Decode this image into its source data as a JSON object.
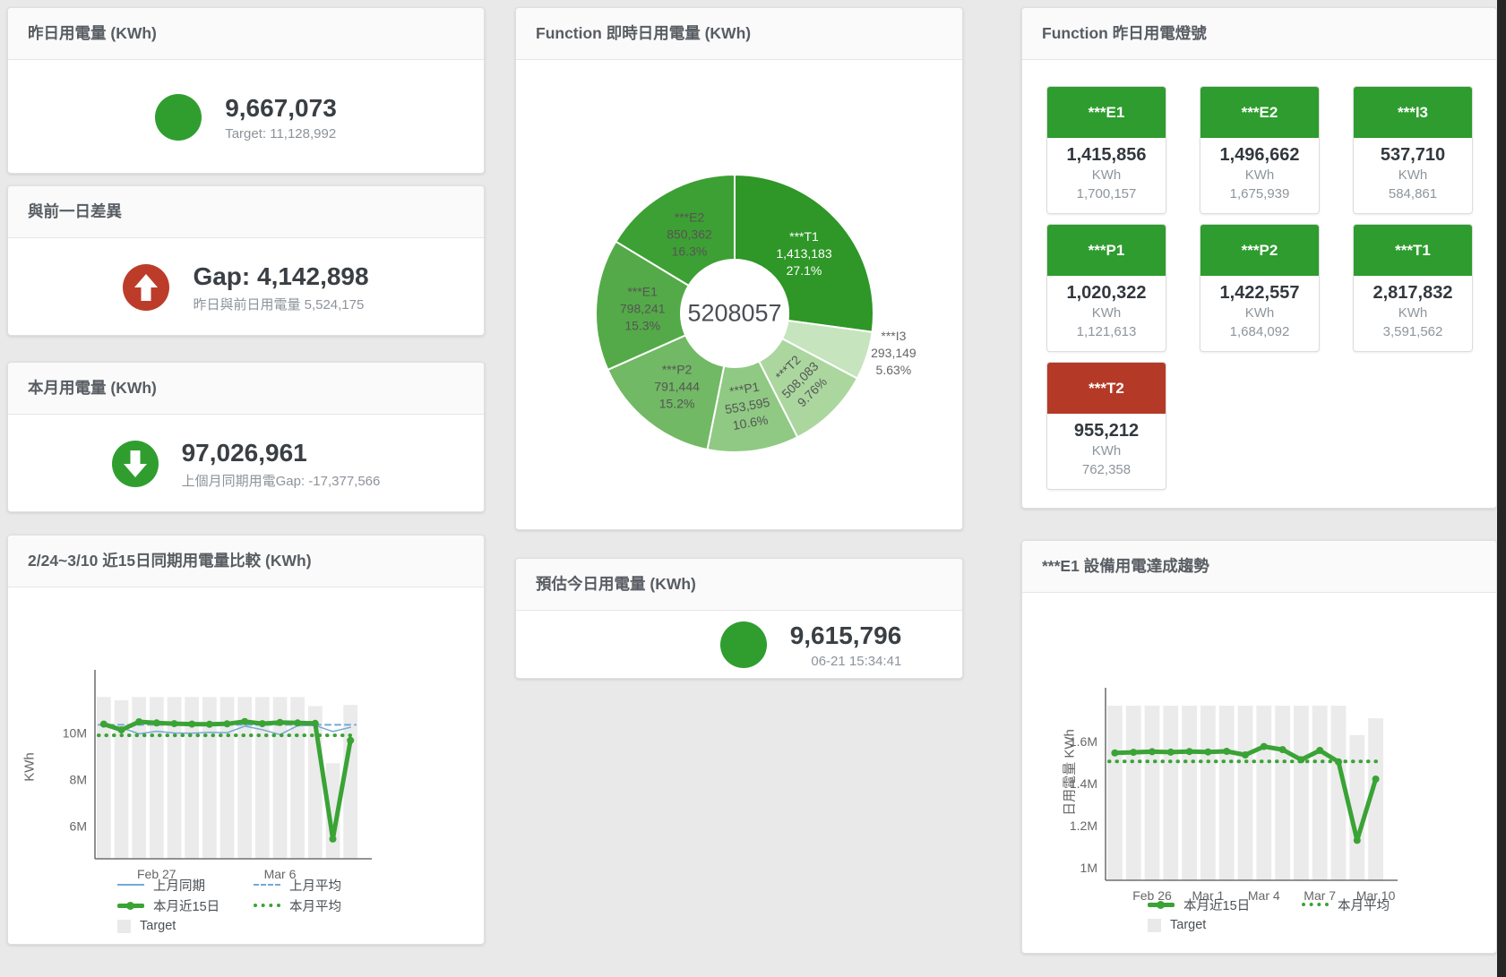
{
  "theme": {
    "green": "#2e9c2e",
    "red": "#b43a27",
    "kpi_green": "#2f9e2f",
    "kpi_red": "#bd3c29",
    "blue_line": "#74a8d4",
    "green_line": "#3aa335",
    "bar_gray": "#ebebeb"
  },
  "kpi_cards": [
    {
      "title": "昨日用電量 (KWh)",
      "value": "9,667,073",
      "sub": "Target: 11,128,992"
    },
    {
      "title": "與前一日差異",
      "value": "Gap: 4,142,898",
      "sub": "昨日與前日用電量 5,524,175"
    },
    {
      "title": "本月用電量 (KWh)",
      "value": "97,026,961",
      "sub": "上個月同期用電Gap: -17,377,566"
    },
    {
      "title": "預估今日用電量 (KWh)",
      "value": "9,615,796",
      "sub": "06-21 15:34:41"
    }
  ],
  "lights": {
    "title": "Function 昨日用電燈號",
    "unit": "KWh",
    "tiles": [
      {
        "name": "***E1",
        "value": "1,415,856",
        "target": "1,700,157",
        "status": "green"
      },
      {
        "name": "***E2",
        "value": "1,496,662",
        "target": "1,675,939",
        "status": "green"
      },
      {
        "name": "***I3",
        "value": "537,710",
        "target": "584,861",
        "status": "green"
      },
      {
        "name": "***P1",
        "value": "1,020,322",
        "target": "1,121,613",
        "status": "green"
      },
      {
        "name": "***P2",
        "value": "1,422,557",
        "target": "1,684,092",
        "status": "green"
      },
      {
        "name": "***T1",
        "value": "2,817,832",
        "target": "3,591,562",
        "status": "green"
      },
      {
        "name": "***T2",
        "value": "955,212",
        "target": "762,358",
        "status": "red"
      }
    ]
  },
  "chart_data": [
    {
      "type": "pie",
      "title": "Function 即時日用電量 (KWh)",
      "center_total": "5208057",
      "slices": [
        {
          "name": "***T1",
          "value": 1413183,
          "value_label": "1,413,183",
          "pct": "27.1%",
          "color": "#2e9727",
          "label_color": "#ffffff",
          "label_pos": "inside",
          "label_rotate": 0
        },
        {
          "name": "***I3",
          "value": 293149,
          "value_label": "293,149",
          "pct": "5.63%",
          "color": "#c6e4bd",
          "label_color": "#666666",
          "label_pos": "outside",
          "label_rotate": 0
        },
        {
          "name": "***T2",
          "value": 508083,
          "value_label": "508,083",
          "pct": "9.76%",
          "color": "#abd79f",
          "label_color": "#555555",
          "label_pos": "inside",
          "label_rotate": -45
        },
        {
          "name": "***P1",
          "value": 553595,
          "value_label": "553,595",
          "pct": "10.6%",
          "color": "#8fc983",
          "label_color": "#555555",
          "label_pos": "inside",
          "label_rotate": -10
        },
        {
          "name": "***P2",
          "value": 791444,
          "value_label": "791,444",
          "pct": "15.2%",
          "color": "#71b964",
          "label_color": "#555555",
          "label_pos": "inside",
          "label_rotate": 0
        },
        {
          "name": "***E1",
          "value": 798241,
          "value_label": "798,241",
          "pct": "15.3%",
          "color": "#54aa48",
          "label_color": "#555555",
          "label_pos": "inside",
          "label_rotate": 0
        },
        {
          "name": "***E2",
          "value": 850362,
          "value_label": "850,362",
          "pct": "16.3%",
          "color": "#3da034",
          "label_color": "#555555",
          "label_pos": "inside",
          "label_rotate": 0
        }
      ]
    },
    {
      "type": "line",
      "title": "2/24~3/10 近15日同期用電量比較 (KWh)",
      "ylabel": "KWh",
      "ylim": [
        4600000,
        12400000
      ],
      "yticks": [
        {
          "v": 6000000,
          "label": "6M"
        },
        {
          "v": 8000000,
          "label": "8M"
        },
        {
          "v": 10000000,
          "label": "10M"
        }
      ],
      "categories": [
        "Feb 24",
        "Feb 25",
        "Feb 26",
        "Feb 27",
        "Feb 28",
        "Mar 1",
        "Mar 2",
        "Mar 3",
        "Mar 4",
        "Mar 5",
        "Mar 6",
        "Mar 7",
        "Mar 8",
        "Mar 9",
        "Mar 10"
      ],
      "xtick_indices": [
        3,
        10
      ],
      "target": [
        11540000,
        11400000,
        11540000,
        11540000,
        11540000,
        11540000,
        11540000,
        11540000,
        11540000,
        11540000,
        11540000,
        11540000,
        11150000,
        8700000,
        11200000
      ],
      "series": [
        {
          "name": "上月同期",
          "style": "solid-thin",
          "color": "#74a8d4",
          "width": 1.5,
          "dash": "",
          "markers": false,
          "values": [
            10350000,
            10230000,
            9960000,
            10070000,
            10000000,
            9990000,
            10030000,
            10010000,
            10290000,
            10140000,
            9930000,
            10310000,
            10320000,
            10060000,
            10240000
          ]
        },
        {
          "name": "上月平均",
          "style": "dashed",
          "color": "#74a8d4",
          "width": 2,
          "dash": "6 5",
          "constant": 10350000
        },
        {
          "name": "本月平均",
          "style": "dotted",
          "color": "#3aa335",
          "width": 4,
          "dash": "0.5 8",
          "constant": 9900000
        },
        {
          "name": "本月近15日",
          "style": "solid-thick",
          "color": "#3aa335",
          "width": 5,
          "dash": "",
          "markers": true,
          "values": [
            10380000,
            10130000,
            10480000,
            10430000,
            10400000,
            10380000,
            10370000,
            10390000,
            10490000,
            10400000,
            10450000,
            10430000,
            10410000,
            5450000,
            9680000
          ]
        }
      ],
      "legend": [
        {
          "label": "上月同期",
          "swatch": "line-blue"
        },
        {
          "label": "上月平均",
          "swatch": "dash-blue"
        },
        {
          "label": "本月近15日",
          "swatch": "thick-green"
        },
        {
          "label": "本月平均",
          "swatch": "dot-green"
        },
        {
          "label": "Target",
          "swatch": "box-gray"
        }
      ]
    },
    {
      "type": "line",
      "title": "***E1 設備用電達成趨勢",
      "ylabel": "日用電量 KWh",
      "ylim": [
        940000,
        1821000
      ],
      "yticks": [
        {
          "v": 1000000,
          "label": "1M"
        },
        {
          "v": 1200000,
          "label": "1.2M"
        },
        {
          "v": 1400000,
          "label": "1.4M"
        },
        {
          "v": 1600000,
          "label": "1.6M"
        }
      ],
      "categories": [
        "Feb 24",
        "Feb 25",
        "Feb 26",
        "Feb 27",
        "Feb 28",
        "Mar 1",
        "Mar 2",
        "Mar 3",
        "Mar 4",
        "Mar 5",
        "Mar 6",
        "Mar 7",
        "Mar 8",
        "Mar 9",
        "Mar 10"
      ],
      "xtick_indices": [
        2,
        5,
        8,
        11,
        14
      ],
      "target": [
        1770000,
        1770000,
        1770000,
        1770000,
        1770000,
        1770000,
        1770000,
        1770000,
        1770000,
        1770000,
        1770000,
        1770000,
        1770000,
        1630000,
        1710000
      ],
      "series": [
        {
          "name": "本月平均",
          "style": "dotted",
          "color": "#3aa335",
          "width": 4,
          "dash": "0.5 8",
          "constant": 1505000
        },
        {
          "name": "本月近15日",
          "style": "solid-thick",
          "color": "#3aa335",
          "width": 5,
          "dash": "",
          "markers": true,
          "values": [
            1545000,
            1548000,
            1551000,
            1549000,
            1552000,
            1550000,
            1553000,
            1536000,
            1576000,
            1561000,
            1513000,
            1557000,
            1503000,
            1130000,
            1421000
          ]
        }
      ],
      "legend": [
        {
          "label": "本月近15日",
          "swatch": "thick-green"
        },
        {
          "label": "本月平均",
          "swatch": "dot-green"
        },
        {
          "label": "Target",
          "swatch": "box-gray"
        }
      ]
    }
  ]
}
